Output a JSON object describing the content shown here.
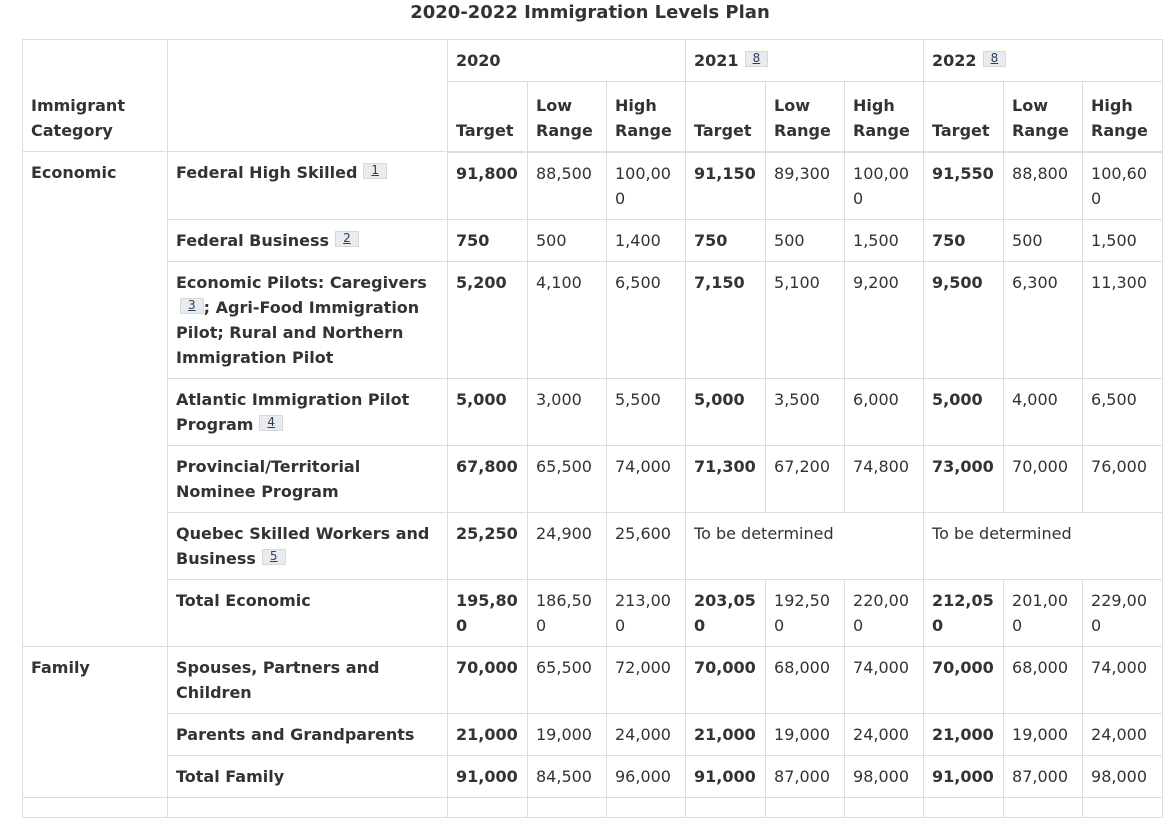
{
  "caption": "2020-2022 Immigration Levels Plan",
  "header": {
    "category_label": "Immigrant Category",
    "years": [
      {
        "year": "2020",
        "footnote": ""
      },
      {
        "year": "2021",
        "footnote": "8"
      },
      {
        "year": "2022",
        "footnote": "8"
      }
    ],
    "sub": {
      "target": "Target",
      "low": "Low Range",
      "high": "High Range"
    }
  },
  "economic": {
    "category": "Economic",
    "rows": [
      {
        "label": "Federal High Skilled",
        "footnote": "1",
        "y2020": [
          "91,800",
          "88,500",
          "100,000"
        ],
        "y2021": [
          "91,150",
          "89,300",
          "100,000"
        ],
        "y2022": [
          "91,550",
          "88,800",
          "100,600"
        ]
      },
      {
        "label": "Federal Business",
        "footnote": "2",
        "y2020": [
          "750",
          "500",
          "1,400"
        ],
        "y2021": [
          "750",
          "500",
          "1,500"
        ],
        "y2022": [
          "750",
          "500",
          "1,500"
        ]
      },
      {
        "label_part1": "Economic Pilots: Caregivers",
        "footnote": "3",
        "label_part2": "; Agri-Food Immigration Pilot; Rural and Northern Immigration Pilot",
        "y2020": [
          "5,200",
          "4,100",
          "6,500"
        ],
        "y2021": [
          "7,150",
          "5,100",
          "9,200"
        ],
        "y2022": [
          "9,500",
          "6,300",
          "11,300"
        ]
      },
      {
        "label": "Atlantic Immigration Pilot Program",
        "footnote": "4",
        "y2020": [
          "5,000",
          "3,000",
          "5,500"
        ],
        "y2021": [
          "5,000",
          "3,500",
          "6,000"
        ],
        "y2022": [
          "5,000",
          "4,000",
          "6,500"
        ]
      },
      {
        "label": "Provincial/Territorial Nominee Program",
        "footnote": "",
        "y2020": [
          "67,800",
          "65,500",
          "74,000"
        ],
        "y2021": [
          "71,300",
          "67,200",
          "74,800"
        ],
        "y2022": [
          "73,000",
          "70,000",
          "76,000"
        ]
      },
      {
        "label": "Quebec Skilled Workers and Business",
        "footnote": "5",
        "y2020": [
          "25,250",
          "24,900",
          "25,600"
        ],
        "y2021_tbd": "To be determined",
        "y2022_tbd": "To be determined"
      },
      {
        "label": "Total Economic",
        "footnote": "",
        "y2020": [
          "195,800",
          "186,500",
          "213,000"
        ],
        "y2021": [
          "203,050",
          "192,500",
          "220,000"
        ],
        "y2022": [
          "212,050",
          "201,000",
          "229,000"
        ]
      }
    ]
  },
  "family": {
    "category": "Family",
    "rows": [
      {
        "label": "Spouses, Partners and Children",
        "y2020": [
          "70,000",
          "65,500",
          "72,000"
        ],
        "y2021": [
          "70,000",
          "68,000",
          "74,000"
        ],
        "y2022": [
          "70,000",
          "68,000",
          "74,000"
        ]
      },
      {
        "label": "Parents and Grandparents",
        "y2020": [
          "21,000",
          "19,000",
          "24,000"
        ],
        "y2021": [
          "21,000",
          "19,000",
          "24,000"
        ],
        "y2022": [
          "21,000",
          "19,000",
          "24,000"
        ]
      },
      {
        "label": "Total Family",
        "y2020": [
          "91,000",
          "84,500",
          "96,000"
        ],
        "y2021": [
          "91,000",
          "87,000",
          "98,000"
        ],
        "y2022": [
          "91,000",
          "87,000",
          "98,000"
        ]
      }
    ]
  }
}
